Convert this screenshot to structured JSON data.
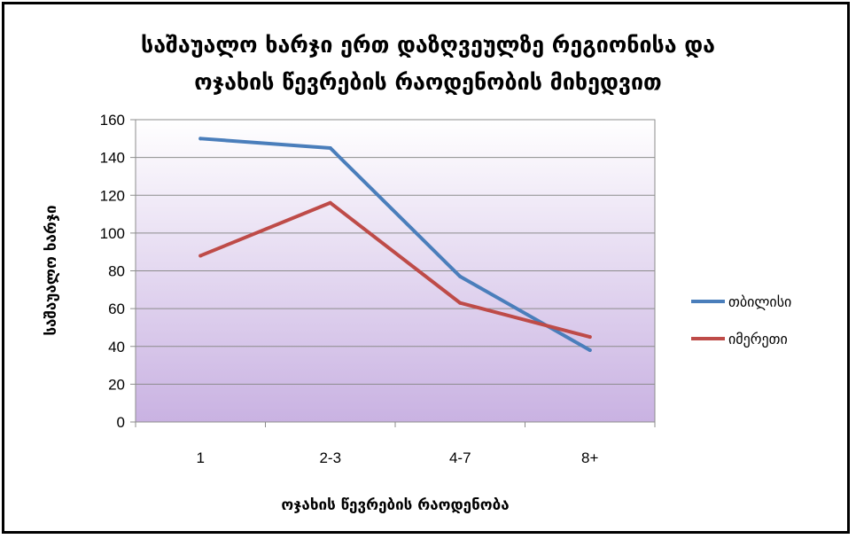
{
  "chart_data": {
    "type": "line",
    "title_line1": "საშაუალო ხარჯი ერთ დაზღვეულზე რეგიონისა და",
    "title_line2": "ოჯახის წევრების რაოდენობის მიხედვით",
    "xlabel": "ოჯახის წევრების რაოდენობა",
    "ylabel": "საშაუალო ხარჯი",
    "categories": [
      "1",
      "2-3",
      "4-7",
      "8+"
    ],
    "ylim": [
      0,
      160
    ],
    "yticks": [
      0,
      20,
      40,
      60,
      80,
      100,
      120,
      140,
      160
    ],
    "grid": true,
    "legend_position": "right",
    "series": [
      {
        "name": "თბილისი",
        "color": "#4a7ebb",
        "values": [
          150,
          145,
          77,
          38
        ]
      },
      {
        "name": "იმერეთი",
        "color": "#be4b48",
        "values": [
          88,
          116,
          63,
          45
        ]
      }
    ],
    "plot_background": [
      "#ffffff",
      "#c9b2e2"
    ]
  }
}
